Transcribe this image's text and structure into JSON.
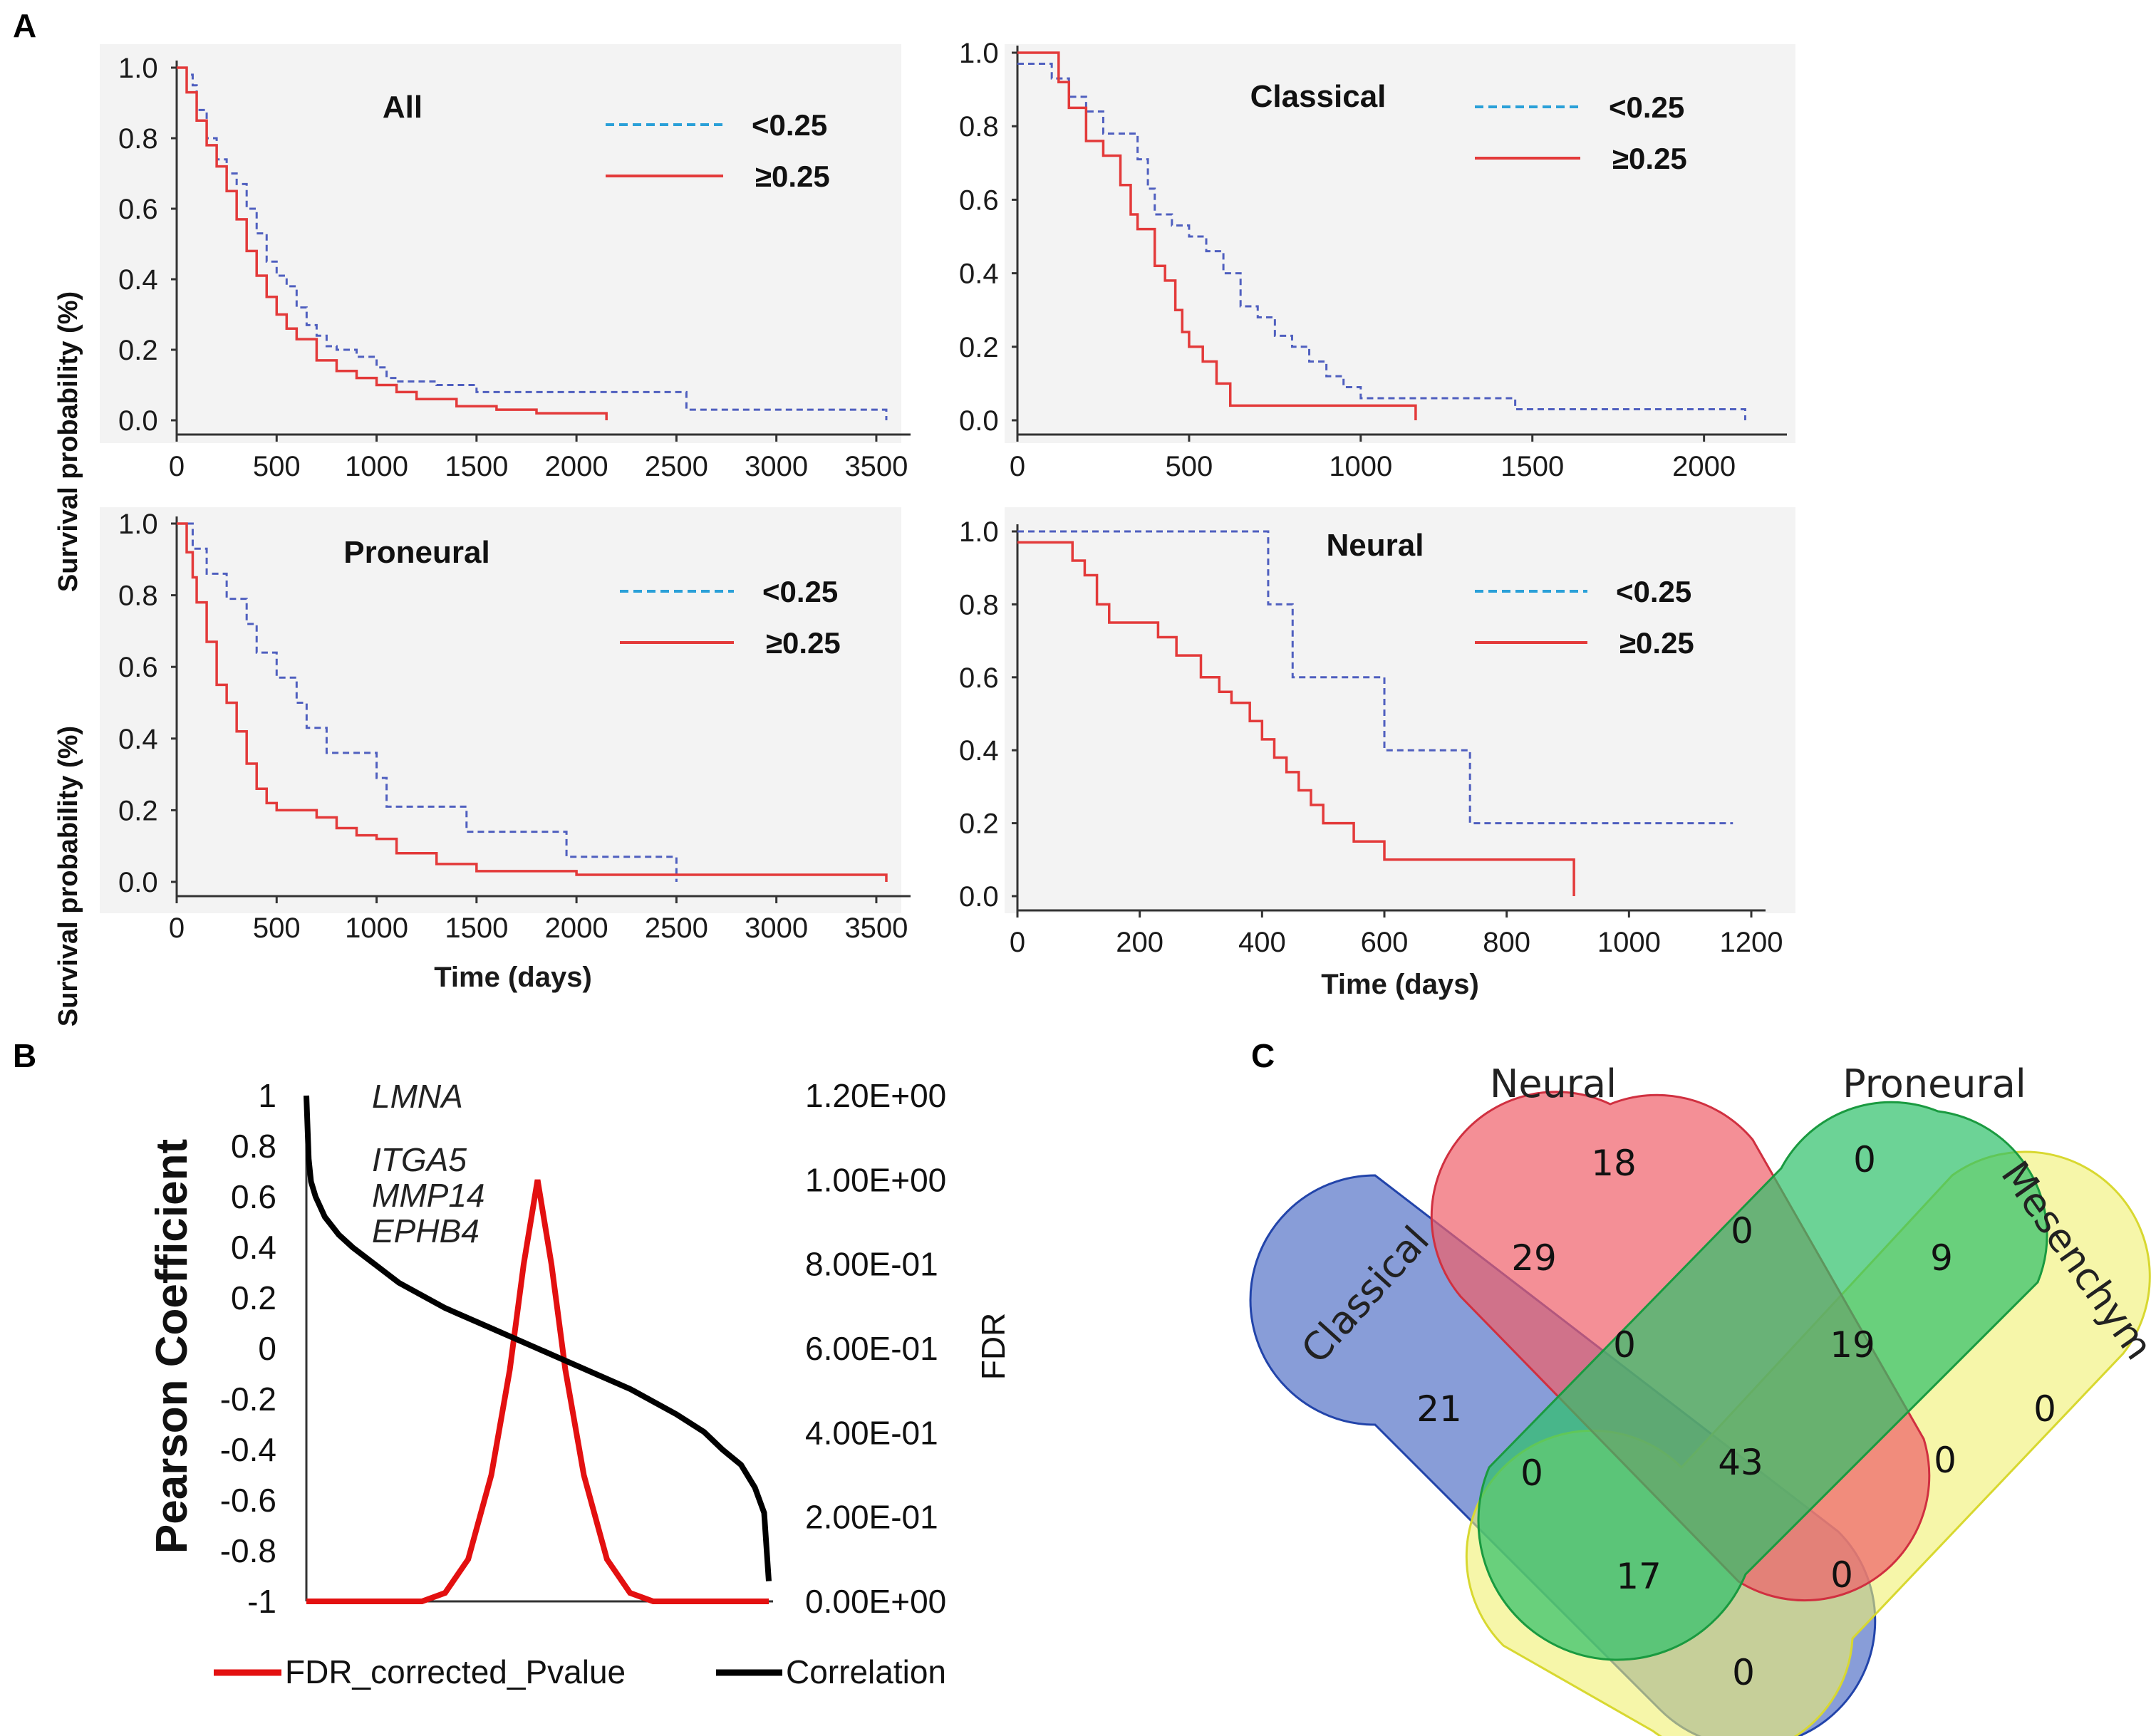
{
  "panel_letters": {
    "a": "A",
    "b": "B",
    "c": "C"
  },
  "chart_data": [
    {
      "type": "line",
      "subtype": "kaplan-meier",
      "title": "All",
      "xlabel": "",
      "ylabel": "Survival probability (%)",
      "xlim": [
        0,
        3600
      ],
      "ylim": [
        0,
        1.0
      ],
      "x_ticks": [
        "0",
        "500",
        "1000",
        "1500",
        "2000",
        "2500",
        "3000",
        "3500"
      ],
      "x_tick_values": [
        0,
        500,
        1000,
        1500,
        2000,
        2500,
        3000,
        3500
      ],
      "y_ticks": [
        "0.0",
        "0.2",
        "0.4",
        "0.6",
        "0.8",
        "1.0"
      ],
      "y_tick_values": [
        0,
        0.2,
        0.4,
        0.6,
        0.8,
        1.0
      ],
      "legend": [
        "<0.25",
        "≥0.25"
      ],
      "series": [
        {
          "name": "<0.25",
          "style": "dashed-blue",
          "x": [
            0,
            50,
            80,
            100,
            150,
            200,
            250,
            300,
            350,
            400,
            450,
            500,
            550,
            600,
            650,
            700,
            750,
            800,
            900,
            1000,
            1050,
            1100,
            1300,
            1500,
            2000,
            2500,
            2550,
            3000,
            3500,
            3550
          ],
          "y": [
            1.0,
            0.98,
            0.95,
            0.88,
            0.8,
            0.74,
            0.7,
            0.67,
            0.6,
            0.53,
            0.45,
            0.41,
            0.38,
            0.32,
            0.27,
            0.24,
            0.21,
            0.2,
            0.18,
            0.15,
            0.12,
            0.11,
            0.1,
            0.08,
            0.08,
            0.08,
            0.03,
            0.03,
            0.03,
            0.0
          ]
        },
        {
          "name": "≥0.25",
          "style": "solid-red",
          "x": [
            0,
            50,
            100,
            150,
            200,
            250,
            300,
            350,
            400,
            450,
            500,
            550,
            600,
            700,
            800,
            900,
            1000,
            1100,
            1200,
            1400,
            1600,
            1800,
            2000,
            2150
          ],
          "y": [
            1.0,
            0.93,
            0.85,
            0.78,
            0.72,
            0.65,
            0.57,
            0.48,
            0.41,
            0.35,
            0.3,
            0.26,
            0.23,
            0.17,
            0.14,
            0.12,
            0.1,
            0.08,
            0.06,
            0.04,
            0.03,
            0.02,
            0.02,
            0.0
          ]
        }
      ]
    },
    {
      "type": "line",
      "subtype": "kaplan-meier",
      "title": "Classical",
      "xlabel": "",
      "ylabel": "",
      "xlim": [
        0,
        2200
      ],
      "ylim": [
        0,
        1.0
      ],
      "x_ticks": [
        "0",
        "500",
        "1000",
        "1500",
        "2000"
      ],
      "x_tick_values": [
        0,
        500,
        1000,
        1500,
        2000
      ],
      "y_ticks": [
        "0.0",
        "0.2",
        "0.4",
        "0.6",
        "0.8",
        "1.0"
      ],
      "y_tick_values": [
        0,
        0.2,
        0.4,
        0.6,
        0.8,
        1.0
      ],
      "legend": [
        "<0.25",
        "≥0.25"
      ],
      "series": [
        {
          "name": "<0.25",
          "style": "dashed-blue",
          "x": [
            0,
            100,
            150,
            200,
            250,
            350,
            380,
            400,
            450,
            500,
            550,
            600,
            650,
            700,
            750,
            800,
            850,
            900,
            950,
            1000,
            1100,
            1200,
            1400,
            1450,
            1600,
            2100,
            2120
          ],
          "y": [
            0.97,
            0.93,
            0.88,
            0.84,
            0.78,
            0.71,
            0.63,
            0.56,
            0.53,
            0.5,
            0.46,
            0.4,
            0.31,
            0.28,
            0.23,
            0.2,
            0.16,
            0.12,
            0.09,
            0.06,
            0.06,
            0.06,
            0.06,
            0.03,
            0.03,
            0.03,
            0.0
          ]
        },
        {
          "name": "≥0.25",
          "style": "solid-red",
          "x": [
            0,
            80,
            120,
            150,
            200,
            250,
            300,
            330,
            350,
            400,
            430,
            460,
            480,
            500,
            540,
            580,
            620,
            650,
            1000,
            1150,
            1160
          ],
          "y": [
            1.0,
            1.0,
            0.92,
            0.85,
            0.76,
            0.72,
            0.64,
            0.56,
            0.52,
            0.42,
            0.38,
            0.3,
            0.24,
            0.2,
            0.16,
            0.1,
            0.04,
            0.04,
            0.04,
            0.04,
            0.0
          ]
        }
      ]
    },
    {
      "type": "line",
      "subtype": "kaplan-meier",
      "title": "Proneural",
      "xlabel": "Time (days)",
      "ylabel": "Survival probability (%)",
      "xlim": [
        0,
        3600
      ],
      "ylim": [
        0,
        1.0
      ],
      "x_ticks": [
        "0",
        "500",
        "1000",
        "1500",
        "2000",
        "2500",
        "3000",
        "3500"
      ],
      "x_tick_values": [
        0,
        500,
        1000,
        1500,
        2000,
        2500,
        3000,
        3500
      ],
      "y_ticks": [
        "0.0",
        "0.2",
        "0.4",
        "0.6",
        "0.8",
        "1.0"
      ],
      "y_tick_values": [
        0,
        0.2,
        0.4,
        0.6,
        0.8,
        1.0
      ],
      "legend": [
        "<0.25",
        "≥0.25"
      ],
      "series": [
        {
          "name": "<0.25",
          "style": "dashed-blue",
          "x": [
            0,
            80,
            150,
            250,
            350,
            400,
            500,
            600,
            650,
            750,
            1000,
            1050,
            1400,
            1450,
            1900,
            1950,
            2450,
            2500
          ],
          "y": [
            1.0,
            0.93,
            0.86,
            0.79,
            0.72,
            0.64,
            0.57,
            0.5,
            0.43,
            0.36,
            0.29,
            0.21,
            0.21,
            0.14,
            0.14,
            0.07,
            0.07,
            0.0
          ]
        },
        {
          "name": "≥0.25",
          "style": "solid-red",
          "x": [
            0,
            50,
            80,
            100,
            150,
            200,
            250,
            300,
            350,
            400,
            450,
            500,
            600,
            700,
            800,
            900,
            1000,
            1100,
            1300,
            1500,
            2000,
            3000,
            3500,
            3550
          ],
          "y": [
            1.0,
            0.92,
            0.85,
            0.78,
            0.67,
            0.55,
            0.5,
            0.42,
            0.33,
            0.26,
            0.22,
            0.2,
            0.2,
            0.18,
            0.15,
            0.13,
            0.12,
            0.08,
            0.05,
            0.03,
            0.02,
            0.02,
            0.02,
            0.0
          ]
        }
      ]
    },
    {
      "type": "line",
      "subtype": "kaplan-meier",
      "title": "Neural",
      "xlabel": "Time (days)",
      "ylabel": "",
      "xlim": [
        0,
        1200
      ],
      "ylim": [
        0,
        1.0
      ],
      "x_ticks": [
        "0",
        "200",
        "400",
        "600",
        "800",
        "1000",
        "1200"
      ],
      "x_tick_values": [
        0,
        200,
        400,
        600,
        800,
        1000,
        1200
      ],
      "y_ticks": [
        "0.0",
        "0.2",
        "0.4",
        "0.6",
        "0.8",
        "1.0"
      ],
      "y_tick_values": [
        0,
        0.2,
        0.4,
        0.6,
        0.8,
        1.0
      ],
      "legend": [
        "<0.25",
        "≥0.25"
      ],
      "series": [
        {
          "name": "<0.25",
          "style": "dashed-blue",
          "x": [
            0,
            410,
            450,
            600,
            740,
            1170
          ],
          "y": [
            1.0,
            0.8,
            0.6,
            0.4,
            0.2,
            0.2
          ]
        },
        {
          "name": "≥0.25",
          "style": "solid-red",
          "x": [
            0,
            40,
            90,
            110,
            130,
            150,
            200,
            230,
            260,
            300,
            330,
            350,
            380,
            400,
            420,
            440,
            460,
            480,
            500,
            550,
            600,
            650,
            900,
            910
          ],
          "y": [
            0.97,
            0.97,
            0.92,
            0.88,
            0.8,
            0.75,
            0.75,
            0.71,
            0.66,
            0.6,
            0.56,
            0.53,
            0.48,
            0.43,
            0.38,
            0.34,
            0.29,
            0.25,
            0.2,
            0.15,
            0.1,
            0.1,
            0.1,
            0.0
          ]
        }
      ]
    },
    {
      "type": "line",
      "title": "",
      "ylabel": "Pearson Coefficient",
      "y2label": "FDR",
      "ylim": [
        -1,
        1
      ],
      "y2lim": [
        0,
        1.2
      ],
      "y_ticks": [
        "1",
        "0.8",
        "0.6",
        "0.4",
        "0.2",
        "0",
        "-0.2",
        "-0.4",
        "-0.6",
        "-0.8",
        "-1"
      ],
      "y2_ticks": [
        "1.20E+00",
        "1.00E+00",
        "8.00E-01",
        "6.00E-01",
        "4.00E-01",
        "2.00E-01",
        "0.00E+00"
      ],
      "annotations": [
        "LMNA",
        "ITGA5",
        "MMP14",
        "EPHB4"
      ],
      "legend": [
        "FDR_corrected_Pvalue",
        "Correlation"
      ],
      "series": [
        {
          "name": "Correlation",
          "axis": "left",
          "x": [
            0,
            0.005,
            0.01,
            0.02,
            0.04,
            0.07,
            0.1,
            0.15,
            0.2,
            0.3,
            0.4,
            0.5,
            0.6,
            0.7,
            0.8,
            0.86,
            0.9,
            0.94,
            0.97,
            0.99,
            1.0
          ],
          "y": [
            1.0,
            0.75,
            0.66,
            0.6,
            0.52,
            0.45,
            0.4,
            0.33,
            0.26,
            0.16,
            0.08,
            0.0,
            -0.08,
            -0.16,
            -0.26,
            -0.33,
            -0.4,
            -0.46,
            -0.55,
            -0.65,
            -0.92
          ]
        },
        {
          "name": "FDR_corrected_Pvalue",
          "axis": "right",
          "x": [
            0,
            0.15,
            0.25,
            0.3,
            0.35,
            0.4,
            0.44,
            0.47,
            0.5,
            0.53,
            0.56,
            0.6,
            0.65,
            0.7,
            0.75,
            0.85,
            1.0
          ],
          "y": [
            0,
            0,
            0,
            0.02,
            0.1,
            0.3,
            0.55,
            0.8,
            1.0,
            0.8,
            0.55,
            0.3,
            0.1,
            0.02,
            0,
            0,
            0
          ]
        }
      ]
    }
  ],
  "venn": {
    "sets": [
      "Classical",
      "Neural",
      "Proneural",
      "Mesenchymal"
    ],
    "visible_label_mesenchymal": "Mesenchym",
    "colors": {
      "classical": "#5574c8",
      "neural": "#f0606a",
      "proneural": "#2ec06a",
      "mesenchymal": "#f0f070"
    },
    "counts": {
      "classical_only": "21",
      "neural_only": "18",
      "proneural_only": "0",
      "mesenchymal_only": "0",
      "classical_neural": "29",
      "neural_proneural": "0",
      "proneural_mesenchymal": "9",
      "classical_neural_proneural": "0",
      "neural_proneural_mesenchymal": "19",
      "classical_proneural": "0",
      "all_four": "43",
      "neural_mesenchymal": "0",
      "classical_proneural_mesenchymal": "17",
      "classical_neural_mesenchymal": "0",
      "classical_mesenchymal": "0"
    }
  }
}
